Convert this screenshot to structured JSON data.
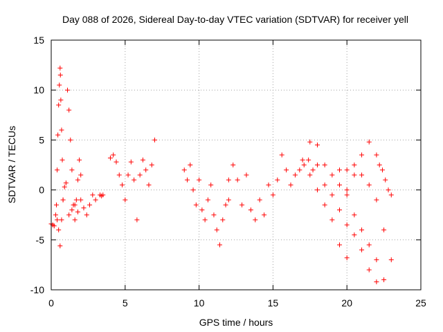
{
  "chart_data": {
    "type": "scatter",
    "title": "Day 088 of 2026, Sidereal Day-to-day VTEC variation (SDTVAR) for receiver yell",
    "xlabel": "GPS time / hours",
    "ylabel": "SDTVAR / TECUs",
    "xlim": [
      0,
      25
    ],
    "ylim": [
      -10,
      15
    ],
    "xticks": [
      0,
      5,
      10,
      15,
      20,
      25
    ],
    "yticks": [
      -10,
      -5,
      0,
      5,
      10,
      15
    ],
    "grid": true,
    "marker": "+",
    "color": "#ff0000",
    "segments": [
      {
        "x": [
          0.0,
          0.1,
          0.2,
          0.3,
          0.4,
          0.5,
          0.6,
          0.7,
          0.8,
          0.9,
          1.0
        ],
        "y": [
          -3.4,
          -3.5,
          -3.6,
          -2.5,
          -3.0,
          -4.0,
          -5.6,
          -3.0,
          -1.0,
          0.3,
          0.7
        ]
      },
      {
        "x": [
          0.35,
          0.4,
          0.45,
          0.5,
          0.55,
          0.6,
          0.62,
          0.65,
          0.7,
          0.75,
          0.8
        ],
        "y": [
          -1.5,
          2.0,
          5.5,
          8.5,
          10.5,
          12.2,
          11.5,
          9.0,
          6.0,
          3.0,
          -1.0
        ]
      },
      {
        "x": [
          1.1,
          1.2,
          1.3,
          1.4,
          1.5,
          1.6,
          1.7,
          1.8,
          1.9,
          2.0
        ],
        "y": [
          10.0,
          8.0,
          5.0,
          2.0,
          -1.5,
          -3.0,
          -1.0,
          1.0,
          3.0,
          1.5
        ]
      },
      {
        "x": [
          1.2,
          1.4,
          1.6,
          1.8,
          2.0,
          2.2,
          2.4,
          2.6,
          2.8,
          3.0
        ],
        "y": [
          -2.5,
          -2.0,
          -1.5,
          -2.2,
          -1.0,
          -1.8,
          -2.5,
          -1.5,
          -0.5,
          -1.0
        ]
      },
      {
        "x": [
          3.3,
          3.4,
          3.5
        ],
        "y": [
          -0.5,
          -0.6,
          -0.5
        ]
      },
      {
        "x": [
          4.0,
          4.2,
          4.4,
          4.6,
          4.8,
          5.0,
          5.2,
          5.4,
          5.6,
          5.8,
          6.0,
          6.2,
          6.4,
          6.6,
          6.8,
          7.0
        ],
        "y": [
          3.2,
          3.5,
          2.8,
          1.5,
          0.5,
          -1.0,
          1.5,
          2.8,
          1.0,
          -3.0,
          1.5,
          3.0,
          2.0,
          0.5,
          2.5,
          5.0
        ]
      },
      {
        "x": [
          9.0,
          9.2,
          9.4,
          9.6,
          9.8,
          10.0,
          10.2,
          10.4,
          10.6,
          10.8,
          11.0,
          11.2,
          11.4,
          11.6,
          11.8,
          12.0
        ],
        "y": [
          2.0,
          1.0,
          2.5,
          0.0,
          -1.5,
          1.0,
          -2.0,
          -3.0,
          -1.0,
          0.5,
          -2.5,
          -4.0,
          -5.5,
          -3.0,
          -1.5,
          1.0
        ]
      },
      {
        "x": [
          12.0,
          12.3,
          12.6,
          12.9,
          13.2,
          13.5,
          13.8,
          14.1,
          14.4,
          14.7,
          15.0,
          15.3,
          15.6,
          15.9,
          16.2,
          16.5,
          16.8,
          17.1,
          17.4,
          17.7,
          18.0
        ],
        "y": [
          -1.0,
          2.5,
          1.0,
          -1.5,
          1.5,
          -2.0,
          -3.0,
          -1.0,
          -2.5,
          0.5,
          -0.5,
          1.0,
          3.5,
          2.0,
          0.5,
          1.5,
          2.0,
          2.5,
          3.0,
          2.0,
          4.5
        ]
      },
      {
        "x": [
          17.0,
          17.5,
          18.0,
          18.5,
          19.0,
          19.5,
          20.0
        ],
        "y": [
          3.0,
          1.5,
          0.0,
          -1.5,
          -3.0,
          -5.5,
          -6.8
        ]
      },
      {
        "x": [
          17.5,
          18.0,
          18.5,
          19.0,
          19.5,
          20.0,
          20.5,
          21.0,
          21.5,
          22.0
        ],
        "y": [
          4.8,
          2.5,
          0.5,
          -0.5,
          -2.0,
          -3.5,
          -4.5,
          -6.0,
          -8.0,
          -9.2
        ]
      },
      {
        "x": [
          18.5,
          19.0,
          19.5,
          20.0,
          20.5,
          21.0,
          21.5
        ],
        "y": [
          2.5,
          1.5,
          0.5,
          0.0,
          1.5,
          3.5,
          4.8
        ]
      },
      {
        "x": [
          19.5,
          20.0,
          20.5,
          21.0,
          21.5,
          22.0,
          22.5
        ],
        "y": [
          2.0,
          -0.5,
          -2.5,
          -4.0,
          -5.5,
          -7.0,
          -9.0
        ]
      },
      {
        "x": [
          20.0,
          20.5,
          21.0,
          21.5,
          22.0,
          22.5,
          23.0
        ],
        "y": [
          2.0,
          2.5,
          1.5,
          0.5,
          -1.0,
          -4.0,
          -7.0
        ]
      },
      {
        "x": [
          22.0,
          22.2,
          22.4,
          22.6,
          22.8,
          23.0
        ],
        "y": [
          3.5,
          2.5,
          2.0,
          1.0,
          0.0,
          -0.5
        ]
      }
    ]
  }
}
